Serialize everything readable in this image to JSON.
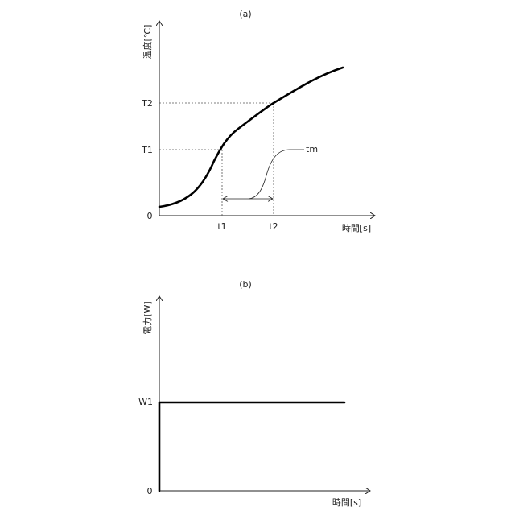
{
  "panel_a": {
    "title": "(a)",
    "y_axis_label": "温度[℃]",
    "x_axis_label": "時間[s]",
    "origin_label": "0",
    "y_ticks": {
      "t2": "T2",
      "t1": "T1"
    },
    "x_ticks": {
      "t1": "t1",
      "t2": "t2"
    },
    "curve_label": "tm"
  },
  "panel_b": {
    "title": "(b)",
    "y_axis_label": "電力[W]",
    "x_axis_label": "時間[s]",
    "origin_label": "0",
    "y_ticks": {
      "w1": "W1"
    }
  }
}
